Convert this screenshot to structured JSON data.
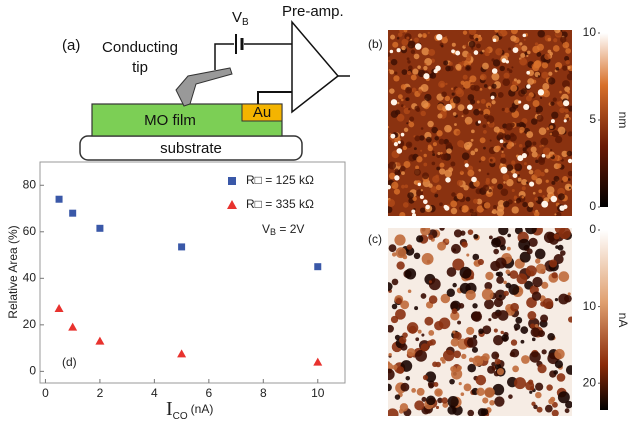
{
  "schematic": {
    "label": "(a)",
    "tip_line1": "Conducting",
    "tip_line2": "tip",
    "bias_main": "V",
    "bias_sub": "B",
    "amp": "Pre-amp.",
    "film": "MO film",
    "electrode": "Au",
    "substrate": "substrate"
  },
  "panels": [
    {
      "label": "(b)",
      "colorbar_lim": [
        0,
        10
      ],
      "colorbar_ticks": [
        0,
        5,
        10
      ],
      "unit": "nm"
    },
    {
      "label": "(c)",
      "colorbar_lim": [
        0,
        23.5
      ],
      "colorbar_ticks": [
        0,
        10,
        20
      ],
      "unit": "nA"
    }
  ],
  "chart_data": {
    "type": "scatter",
    "panel_label": "(d)",
    "x_label": {
      "main": "I",
      "sub": "CO",
      "unit": "(nA)"
    },
    "y_label": "Relative Area (%)",
    "annotation": {
      "main": "V",
      "sub": "B",
      "rest": " = 2V"
    },
    "xlim": [
      -0.2,
      11
    ],
    "xticks": [
      0,
      2,
      4,
      6,
      8,
      10
    ],
    "ylim": [
      -5,
      90
    ],
    "yticks": [
      0,
      20,
      40,
      60,
      80
    ],
    "series": [
      {
        "name": "R□ = 125 kΩ",
        "color": "#3a58a8",
        "marker": "square",
        "x": [
          0.5,
          1,
          2,
          5,
          10
        ],
        "values": [
          74,
          68,
          61.5,
          53.5,
          45
        ]
      },
      {
        "name": "R□ = 335 kΩ",
        "color": "#e8322e",
        "marker": "triangle",
        "x": [
          0.5,
          1,
          2,
          5,
          10
        ],
        "values": [
          27,
          19,
          13,
          7.5,
          4
        ]
      }
    ]
  }
}
